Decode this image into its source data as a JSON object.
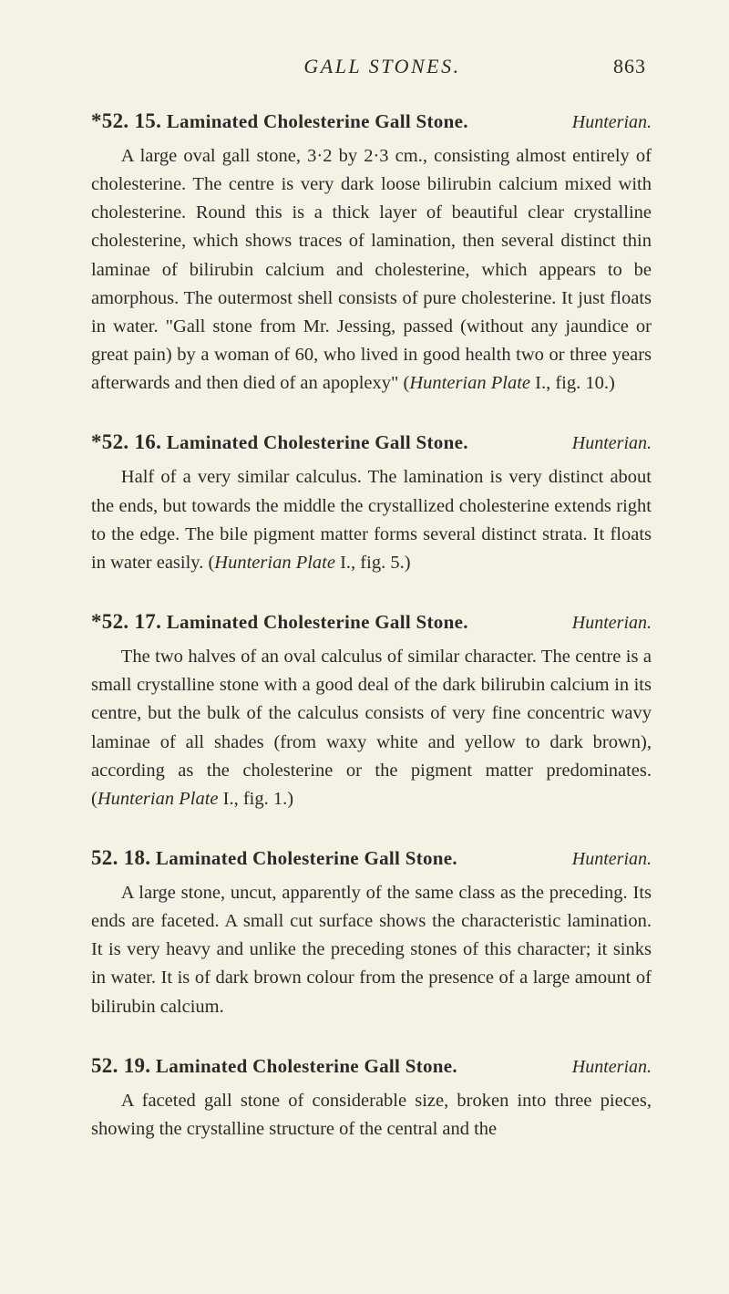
{
  "page": {
    "running_title": "GALL STONES.",
    "page_number": "863"
  },
  "entries": [
    {
      "number": "*52. 15.",
      "title": "Laminated Cholesterine Gall Stone.",
      "source": "Hunterian.",
      "body_pre": "A large oval gall stone, 3·2 by 2·3 cm., consisting almost entirely of cholesterine. The centre is very dark loose bilirubin calcium mixed with cholesterine. Round this is a thick layer of beautiful clear crystalline cholesterine, which shows traces of lamination, then several distinct thin laminae of bilirubin calcium and cholesterine, which appears to be amorphous. The outermost shell consists of pure cholesterine. It just floats in water. \"Gall stone from Mr. Jessing, passed (without any jaundice or great pain) by a woman of 60, who lived in good health two or three years afterwards and then died of an apoplexy\" (",
      "plate": "Hunterian Plate",
      "body_post": " I., fig. 10.)"
    },
    {
      "number": "*52. 16.",
      "title": "Laminated Cholesterine Gall Stone.",
      "source": "Hunterian.",
      "body_pre": "Half of a very similar calculus. The lamination is very distinct about the ends, but towards the middle the crystallized cholesterine extends right to the edge. The bile pigment matter forms several distinct strata. It floats in water easily. (",
      "plate": "Hunterian Plate",
      "body_post": " I., fig. 5.)"
    },
    {
      "number": "*52. 17.",
      "title": "Laminated Cholesterine Gall Stone.",
      "source": "Hunterian.",
      "body_pre": "The two halves of an oval calculus of similar character. The centre is a small crystalline stone with a good deal of the dark bilirubin calcium in its centre, but the bulk of the calculus consists of very fine concentric wavy laminae of all shades (from waxy white and yellow to dark brown), according as the cholesterine or the pigment matter predominates. (",
      "plate": "Hunterian Plate",
      "body_post": " I., fig. 1.)"
    },
    {
      "number": "52. 18.",
      "title": "Laminated Cholesterine Gall Stone.",
      "source": "Hunterian.",
      "body_pre": "A large stone, uncut, apparently of the same class as the preceding. Its ends are faceted. A small cut surface shows the characteristic lamination. It is very heavy and unlike the preceding stones of this character; it sinks in water. It is of dark brown colour from the presence of a large amount of bilirubin calcium.",
      "plate": "",
      "body_post": ""
    },
    {
      "number": "52. 19.",
      "title": "Laminated Cholesterine Gall Stone.",
      "source": "Hunterian.",
      "body_pre": "A faceted gall stone of considerable size, broken into three pieces, showing the crystalline structure of the central and the",
      "plate": "",
      "body_post": ""
    }
  ]
}
